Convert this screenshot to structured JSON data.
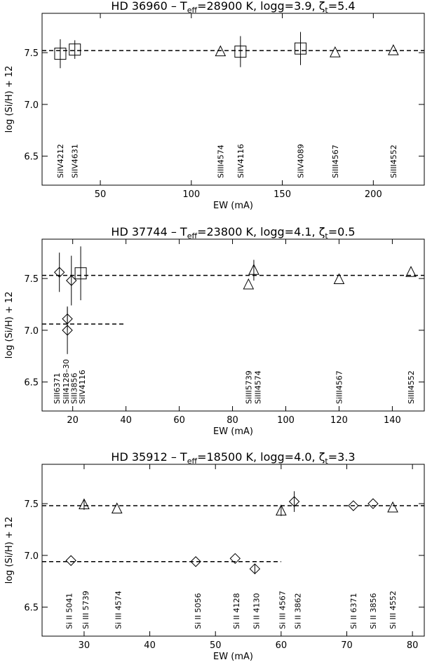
{
  "chart_data": [
    {
      "type": "scatter",
      "title": "HD 36960 – T_eff=28900 K, logg=3.9, ζ_t=5.4",
      "title_parts": {
        "star": "HD 36960",
        "teff": "28900 K",
        "logg": "logg=3.9",
        "zeta": "5.4"
      },
      "xlabel": "EW (mA)",
      "ylabel": "log (Si/H) + 12",
      "xlim": [
        18,
        228
      ],
      "ylim": [
        6.22,
        7.88
      ],
      "xticks": [
        50,
        100,
        150,
        200
      ],
      "yticks": [
        6.5,
        7.0,
        7.5
      ],
      "hlines": [
        {
          "y": 7.52,
          "x0": 18,
          "x1": 228
        }
      ],
      "series": [
        {
          "marker": "square",
          "points": [
            {
              "x": 28,
              "y": 7.49,
              "err": 0.14
            },
            {
              "x": 36,
              "y": 7.53,
              "err": 0.09
            },
            {
              "x": 127,
              "y": 7.51,
              "err": 0.15
            },
            {
              "x": 160,
              "y": 7.54,
              "err": 0.16
            }
          ]
        },
        {
          "marker": "triangle",
          "points": [
            {
              "x": 116,
              "y": 7.51,
              "err": 0
            },
            {
              "x": 179,
              "y": 7.5,
              "err": 0
            },
            {
              "x": 211,
              "y": 7.52,
              "err": 0
            }
          ]
        }
      ],
      "annotations": [
        {
          "x": 28,
          "text": "SiIV4212"
        },
        {
          "x": 36,
          "text": "SiIV4631"
        },
        {
          "x": 116,
          "text": "SiIII4574"
        },
        {
          "x": 127,
          "text": "SiIV4116"
        },
        {
          "x": 160,
          "text": "SiIV4089"
        },
        {
          "x": 179,
          "text": "SiIII4567"
        },
        {
          "x": 211,
          "text": "SiIII4552"
        }
      ]
    },
    {
      "type": "scatter",
      "title": "HD 37744 – T_eff=23800 K, logg=4.1, ζ_t=0.5",
      "title_parts": {
        "star": "HD 37744",
        "teff": "23800 K",
        "logg": "logg=4.1",
        "zeta": "0.5"
      },
      "xlabel": "EW (mA)",
      "ylabel": "log (Si/H) + 12",
      "xlim": [
        8.5,
        152
      ],
      "ylim": [
        6.22,
        7.88
      ],
      "xticks": [
        20,
        40,
        60,
        80,
        100,
        120,
        140
      ],
      "yticks": [
        6.5,
        7.0,
        7.5
      ],
      "hlines": [
        {
          "y": 7.53,
          "x0": 8.5,
          "x1": 152
        },
        {
          "y": 7.06,
          "x0": 8.5,
          "x1": 40
        }
      ],
      "series": [
        {
          "marker": "diamond",
          "points": [
            {
              "x": 15,
              "y": 7.56,
              "err": 0.19
            },
            {
              "x": 19.5,
              "y": 7.48,
              "err": 0.24
            },
            {
              "x": 18,
              "y": 7.11,
              "err": 0.11
            },
            {
              "x": 18,
              "y": 7.0,
              "err": 0.23
            }
          ]
        },
        {
          "marker": "square",
          "points": [
            {
              "x": 23,
              "y": 7.55,
              "err": 0.26
            }
          ]
        },
        {
          "marker": "triangle",
          "points": [
            {
              "x": 86,
              "y": 7.44,
              "err": 0
            },
            {
              "x": 88,
              "y": 7.58,
              "err": 0.1
            },
            {
              "x": 120,
              "y": 7.49,
              "err": 0
            },
            {
              "x": 147,
              "y": 7.56,
              "err": 0
            }
          ]
        }
      ],
      "annotations": [
        {
          "x": 14,
          "text": "SiII6371"
        },
        {
          "x": 17.5,
          "text": "SiII4128–30"
        },
        {
          "x": 20.5,
          "text": "SiII3856"
        },
        {
          "x": 23.5,
          "text": "SiIV4116"
        },
        {
          "x": 86,
          "text": "SiIII5739"
        },
        {
          "x": 89.5,
          "text": "SiIII4574"
        },
        {
          "x": 120,
          "text": "SiIII4567"
        },
        {
          "x": 147,
          "text": "SiIII4552"
        }
      ]
    },
    {
      "type": "scatter",
      "title": "HD 35912 – T_eff=18500 K, logg=4.0, ζ_t=3.3",
      "title_parts": {
        "star": "HD 35912",
        "teff": "18500 K",
        "logg": "logg=4.0",
        "zeta": "3.3"
      },
      "xlabel": "EW (mA)",
      "ylabel": "log (Si/H) + 12",
      "xlim": [
        23.6,
        81.8
      ],
      "ylim": [
        6.22,
        7.88
      ],
      "xticks": [
        30,
        40,
        50,
        60,
        70,
        80
      ],
      "yticks": [
        6.5,
        7.0,
        7.5
      ],
      "hlines": [
        {
          "y": 7.48,
          "x0": 23.6,
          "x1": 81.8
        },
        {
          "y": 6.94,
          "x0": 23.6,
          "x1": 60
        }
      ],
      "series": [
        {
          "marker": "diamond",
          "points": [
            {
              "x": 28,
              "y": 6.95,
              "err": 0
            },
            {
              "x": 47,
              "y": 6.94,
              "err": 0
            },
            {
              "x": 53,
              "y": 6.97,
              "err": 0
            },
            {
              "x": 56,
              "y": 6.87,
              "err": 0.05
            },
            {
              "x": 62,
              "y": 7.52,
              "err": 0.1
            },
            {
              "x": 71,
              "y": 7.48,
              "err": 0
            },
            {
              "x": 74,
              "y": 7.5,
              "err": 0
            }
          ]
        },
        {
          "marker": "triangle",
          "points": [
            {
              "x": 30,
              "y": 7.49,
              "err": 0.05
            },
            {
              "x": 35,
              "y": 7.45,
              "err": 0
            },
            {
              "x": 60,
              "y": 7.43,
              "err": 0.05
            },
            {
              "x": 77,
              "y": 7.46,
              "err": 0
            }
          ]
        }
      ],
      "annotations": [
        {
          "x": 27.7,
          "text": "Si II 5041"
        },
        {
          "x": 30.2,
          "text": "Si III 5739"
        },
        {
          "x": 35.2,
          "text": "Si III 4574"
        },
        {
          "x": 47.3,
          "text": "Si II 5056"
        },
        {
          "x": 53.2,
          "text": "Si II 4128"
        },
        {
          "x": 56.2,
          "text": "Si II 4130"
        },
        {
          "x": 60.2,
          "text": "Si III 4567"
        },
        {
          "x": 62.5,
          "text": "Si II 3862"
        },
        {
          "x": 71,
          "text": "Si II 6371"
        },
        {
          "x": 74,
          "text": "Si II 3856"
        },
        {
          "x": 77,
          "text": "Si III 4552"
        }
      ]
    }
  ]
}
